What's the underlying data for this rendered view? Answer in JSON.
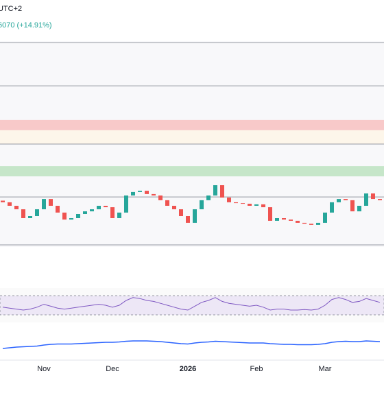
{
  "header": {
    "timezone": "UTC+2",
    "change": "6070 (+14.91%)"
  },
  "chart_data": {
    "type": "candlestick",
    "ylim": [
      0,
      100
    ],
    "levels": [
      99.3,
      78.3,
      50,
      24.3,
      1
    ],
    "zones": [
      {
        "color": "#f8c9c9",
        "range": [
          56.7,
          61.7
        ]
      },
      {
        "color": "#fdf6ea",
        "range": [
          50,
          56.7
        ]
      },
      {
        "color": "#c6e6c9",
        "range": [
          34.3,
          39.3
        ]
      }
    ],
    "open": [
      22.5,
      21.7,
      20,
      18.3,
      14,
      15,
      18.3,
      23.3,
      20,
      16.7,
      13.3,
      14,
      16,
      17.3,
      18.3,
      20,
      19.3,
      14,
      16.7,
      25,
      26.7,
      27.3,
      25.7,
      25,
      22.7,
      20,
      18.3,
      15,
      11.7,
      18.3,
      22.7,
      25,
      30,
      24,
      21.7,
      21.3,
      21,
      20,
      20.7,
      19.3,
      12.7,
      14,
      13.3,
      12.7,
      11.7,
      11.3,
      10.7,
      11.7,
      16.7,
      21.7,
      23.3,
      22.7,
      17.3,
      20,
      26,
      23.3
    ],
    "close": [
      21.7,
      20,
      18.3,
      14,
      15,
      18.3,
      23.3,
      20,
      16.7,
      13.3,
      14,
      16,
      17.3,
      18.3,
      20,
      19.3,
      14,
      16.7,
      25,
      26.7,
      27.3,
      25.7,
      25,
      22.7,
      20,
      18.3,
      15,
      11.7,
      18.3,
      22.7,
      25,
      30,
      24,
      21.7,
      21.3,
      21,
      20,
      20.7,
      19.3,
      12.7,
      14,
      13.3,
      12.7,
      11.7,
      11.3,
      10.7,
      11.7,
      16.7,
      21.7,
      23.3,
      22.7,
      17.3,
      20,
      26,
      23.3,
      22.7
    ],
    "up_color": "#26a69a",
    "down_color": "#ef5350",
    "x_labels": [
      {
        "text": "Nov",
        "index": 6
      },
      {
        "text": "Dec",
        "index": 16
      },
      {
        "text": "2026",
        "index": 27
      },
      {
        "text": "Feb",
        "index": 37
      },
      {
        "text": "Mar",
        "index": 47
      }
    ],
    "rsi": {
      "ylim": [
        0,
        100
      ],
      "band": [
        30,
        70
      ],
      "color": "#7e57c2",
      "values": [
        46,
        44,
        42,
        40,
        42,
        46,
        52,
        48,
        44,
        42,
        44,
        46,
        48,
        50,
        52,
        50,
        46,
        50,
        60,
        66,
        64,
        60,
        58,
        54,
        50,
        46,
        42,
        40,
        48,
        56,
        60,
        66,
        58,
        54,
        52,
        50,
        48,
        50,
        46,
        40,
        42,
        42,
        40,
        40,
        41,
        40,
        42,
        50,
        62,
        66,
        62,
        56,
        58,
        64,
        60,
        56
      ]
    },
    "macd": {
      "ylim": [
        -10,
        10
      ],
      "color": "#2962ff",
      "values": [
        -8,
        -7,
        -6,
        -5.5,
        -5,
        -4.5,
        -3,
        -2,
        -1.5,
        -1.5,
        -1.5,
        -1,
        -0.5,
        0,
        0.5,
        1,
        1,
        1.5,
        2.5,
        3,
        3,
        3,
        2.5,
        2,
        1,
        0,
        -1,
        -1.5,
        0,
        1,
        1.5,
        2.5,
        2,
        1.5,
        1,
        0.5,
        0,
        0,
        0,
        -1,
        -1.5,
        -2,
        -2,
        -2.5,
        -2.5,
        -2.5,
        -2,
        -1,
        1,
        2,
        2.5,
        2,
        2,
        3,
        2.5,
        2
      ]
    }
  }
}
